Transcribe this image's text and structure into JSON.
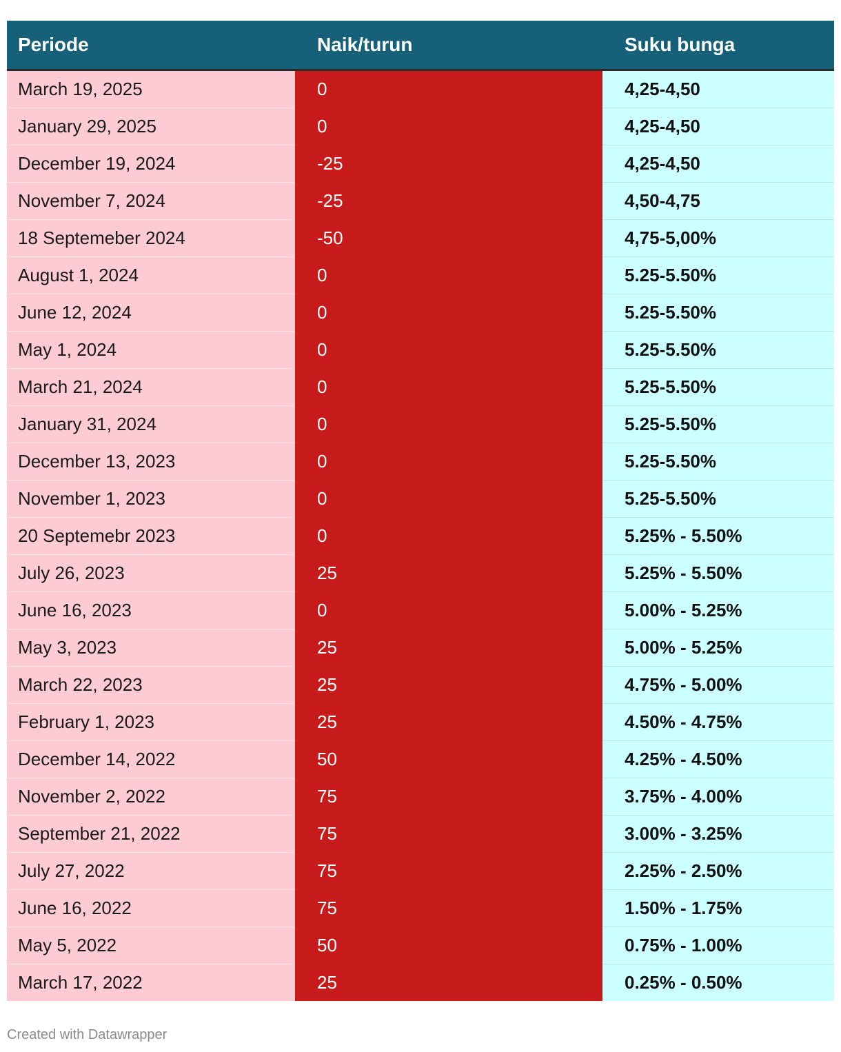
{
  "chart_data": {
    "type": "table",
    "columns": [
      "Periode",
      "Naik/turun",
      "Suku bunga"
    ],
    "rows": [
      {
        "periode": "March 19, 2025",
        "change": "0",
        "rate": "4,25-4,50"
      },
      {
        "periode": "January 29, 2025",
        "change": "0",
        "rate": "4,25-4,50"
      },
      {
        "periode": "December 19, 2024",
        "change": "-25",
        "rate": "4,25-4,50"
      },
      {
        "periode": "November 7, 2024",
        "change": "-25",
        "rate": "4,50-4,75"
      },
      {
        "periode": "18 Septemeber 2024",
        "change": "-50",
        "rate": "4,75-5,00%"
      },
      {
        "periode": "August 1, 2024",
        "change": "0",
        "rate": "5.25-5.50%"
      },
      {
        "periode": "June 12, 2024",
        "change": "0",
        "rate": "5.25-5.50%"
      },
      {
        "periode": "May 1, 2024",
        "change": "0",
        "rate": "5.25-5.50%"
      },
      {
        "periode": "March 21, 2024",
        "change": "0",
        "rate": "5.25-5.50%"
      },
      {
        "periode": "January 31, 2024",
        "change": "0",
        "rate": "5.25-5.50%"
      },
      {
        "periode": "December 13, 2023",
        "change": "0",
        "rate": "5.25-5.50%"
      },
      {
        "periode": "November 1, 2023",
        "change": "0",
        "rate": "5.25-5.50%"
      },
      {
        "periode": "20 Septemebr 2023",
        "change": "0",
        "rate": "5.25% - 5.50%"
      },
      {
        "periode": "July 26, 2023",
        "change": "25",
        "rate": "5.25% - 5.50%"
      },
      {
        "periode": "June 16, 2023",
        "change": "0",
        "rate": "5.00% - 5.25%"
      },
      {
        "periode": "May 3, 2023",
        "change": "25",
        "rate": "5.00% - 5.25%"
      },
      {
        "periode": "March 22, 2023",
        "change": "25",
        "rate": "4.75% - 5.00%"
      },
      {
        "periode": "February 1, 2023",
        "change": "25",
        "rate": "4.50% - 4.75%"
      },
      {
        "periode": "December 14, 2022",
        "change": "50",
        "rate": "4.25% - 4.50%"
      },
      {
        "periode": "November 2, 2022",
        "change": "75",
        "rate": "3.75% - 4.00%"
      },
      {
        "periode": "September 21, 2022",
        "change": "75",
        "rate": "3.00% - 3.25%"
      },
      {
        "periode": "July 27, 2022",
        "change": "75",
        "rate": "2.25% - 2.50%"
      },
      {
        "periode": "June 16, 2022",
        "change": "75",
        "rate": "1.50% - 1.75%"
      },
      {
        "periode": "May 5, 2022",
        "change": "50",
        "rate": "0.75% - 1.00%"
      },
      {
        "periode": "March 17, 2022",
        "change": "25",
        "rate": "0.25% - 0.50%"
      }
    ]
  },
  "colors": {
    "header_bg": "#16607a",
    "periode_bg": "#fdcbd3",
    "change_bg": "#c71b1b",
    "rate_bg": "#ccffff"
  },
  "footer": {
    "credit": "Created with Datawrapper"
  }
}
